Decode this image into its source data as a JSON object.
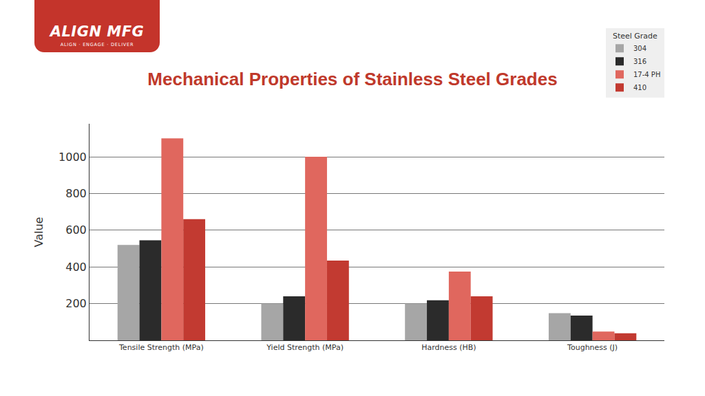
{
  "logo": {
    "text": "ALIGN MFG",
    "tagline": "ALIGN · ENGAGE · DELIVER"
  },
  "chart_data": {
    "type": "bar",
    "title": "Mechanical Properties of Stainless Steel Grades",
    "y_label": "Value",
    "legend_title": "Steel Grade",
    "legend": "top-right",
    "categories": [
      "Tensile Strength (MPa)",
      "Yield Strength (MPa)",
      "Hardness (HB)",
      "Toughness (J)"
    ],
    "series": [
      {
        "name": "304",
        "color": "#a6a6a6",
        "values": [
          520,
          200,
          200,
          148
        ]
      },
      {
        "name": "316",
        "color": "#2b2b2b",
        "values": [
          545,
          240,
          218,
          135
        ]
      },
      {
        "name": "17-4 PH",
        "color": "#e0675e",
        "values": [
          1100,
          1000,
          375,
          48
        ]
      },
      {
        "name": "410",
        "color": "#c23a31",
        "values": [
          660,
          435,
          240,
          38
        ]
      }
    ],
    "ylim": [
      0,
      1180
    ],
    "yticks": [
      200,
      400,
      600,
      800,
      1000
    ],
    "grid": true
  }
}
